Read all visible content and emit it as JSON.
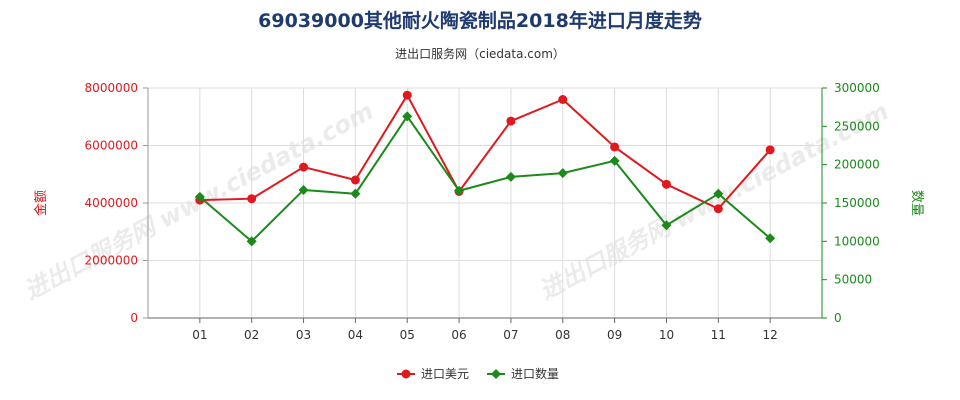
{
  "chart_data": {
    "type": "line",
    "title": "69039000其他耐火陶瓷制品2018年进口月度走势",
    "subtitle": "进出口服务网（ciedata.com）",
    "categories": [
      "01",
      "02",
      "03",
      "04",
      "05",
      "06",
      "07",
      "08",
      "09",
      "10",
      "11",
      "12"
    ],
    "y_left": {
      "label": "金额",
      "range": [
        0,
        8000000
      ],
      "ticks": [
        0,
        2000000,
        4000000,
        6000000,
        8000000
      ],
      "color": "#e0191e"
    },
    "y_right": {
      "label": "数量",
      "range": [
        0,
        300000
      ],
      "ticks": [
        0,
        50000,
        100000,
        150000,
        200000,
        250000,
        300000
      ],
      "color": "#1b8a1b"
    },
    "series": [
      {
        "name": "进口美元",
        "axis": "left",
        "color": "#e0191e",
        "marker": "circle",
        "values": [
          4100000,
          4150000,
          5250000,
          4800000,
          7750000,
          4400000,
          6850000,
          7600000,
          5950000,
          4650000,
          3800000,
          5850000
        ]
      },
      {
        "name": "进口数量",
        "axis": "right",
        "color": "#1b8a1b",
        "marker": "diamond",
        "values": [
          158000,
          100000,
          167000,
          162000,
          263000,
          166000,
          184000,
          189000,
          205000,
          121000,
          162000,
          104000
        ]
      }
    ],
    "grid": true,
    "legend": "bottom-center"
  },
  "watermark": "进出口服务网 www.ciedata.com",
  "colors": {
    "title": "#1f3a6d",
    "text": "#333333",
    "grid": "#dddddd",
    "axis": "#999999",
    "watermark": "#c8c8c8"
  }
}
